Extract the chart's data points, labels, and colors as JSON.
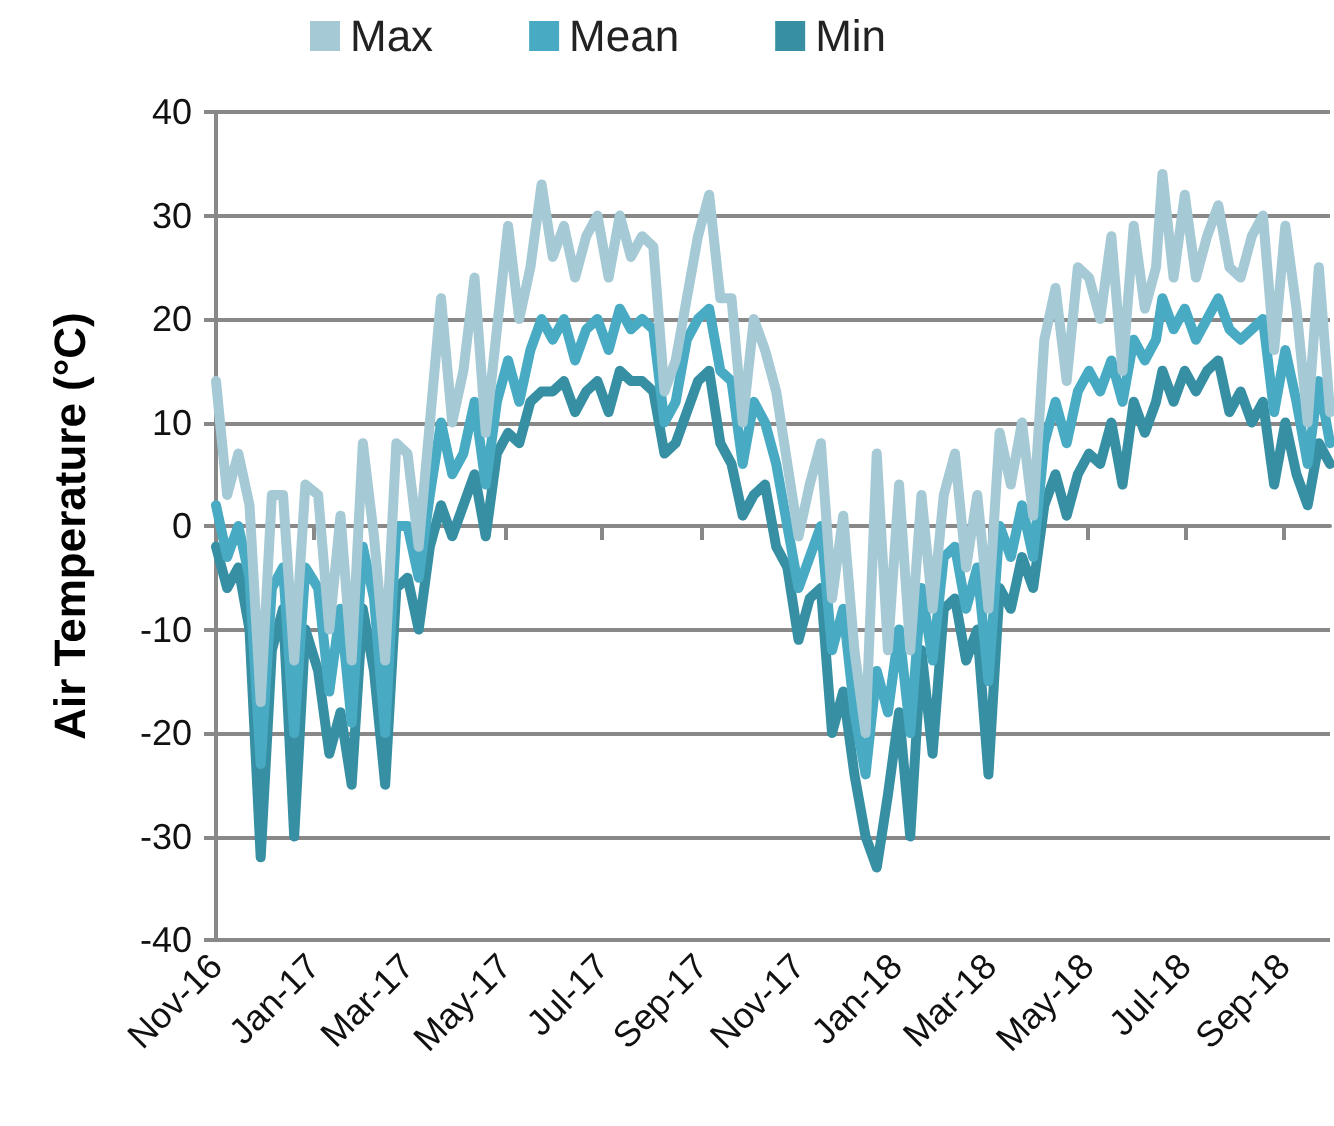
{
  "chart_data": {
    "type": "line",
    "ylabel": "Air Temperature (°C)",
    "legend": "top",
    "grid": "y",
    "marker": "none",
    "line_style": "solid",
    "ylim": [
      -40,
      40
    ],
    "yticks": [
      -40,
      -30,
      -20,
      -10,
      0,
      10,
      20,
      30,
      40
    ],
    "xlim": [
      "2016-11-01",
      "2018-09-30"
    ],
    "xticks": [
      {
        "value": "2016-11-01",
        "label": "Nov-16"
      },
      {
        "value": "2017-01-01",
        "label": "Jan-17"
      },
      {
        "value": "2017-03-01",
        "label": "Mar-17"
      },
      {
        "value": "2017-05-01",
        "label": "May-17"
      },
      {
        "value": "2017-07-01",
        "label": "Jul-17"
      },
      {
        "value": "2017-09-01",
        "label": "Sep-17"
      },
      {
        "value": "2017-11-01",
        "label": "Nov-17"
      },
      {
        "value": "2018-01-01",
        "label": "Jan-18"
      },
      {
        "value": "2018-03-01",
        "label": "Mar-18"
      },
      {
        "value": "2018-05-01",
        "label": "May-18"
      },
      {
        "value": "2018-07-01",
        "label": "Jul-18"
      },
      {
        "value": "2018-09-01",
        "label": "Sep-18"
      }
    ],
    "x": [
      "2016-11-01",
      "2016-11-08",
      "2016-11-15",
      "2016-11-22",
      "2016-11-29",
      "2016-12-06",
      "2016-12-13",
      "2016-12-20",
      "2016-12-27",
      "2017-01-04",
      "2017-01-11",
      "2017-01-18",
      "2017-01-25",
      "2017-02-01",
      "2017-02-08",
      "2017-02-15",
      "2017-02-22",
      "2017-03-01",
      "2017-03-08",
      "2017-03-15",
      "2017-03-22",
      "2017-03-29",
      "2017-04-05",
      "2017-04-12",
      "2017-04-19",
      "2017-04-26",
      "2017-05-03",
      "2017-05-10",
      "2017-05-17",
      "2017-05-24",
      "2017-05-31",
      "2017-06-07",
      "2017-06-14",
      "2017-06-21",
      "2017-06-28",
      "2017-07-05",
      "2017-07-12",
      "2017-07-19",
      "2017-07-26",
      "2017-08-02",
      "2017-08-09",
      "2017-08-16",
      "2017-08-23",
      "2017-08-30",
      "2017-09-06",
      "2017-09-13",
      "2017-09-20",
      "2017-09-27",
      "2017-10-04",
      "2017-10-11",
      "2017-10-18",
      "2017-10-25",
      "2017-11-01",
      "2017-11-08",
      "2017-11-15",
      "2017-11-22",
      "2017-11-29",
      "2017-12-06",
      "2017-12-13",
      "2017-12-20",
      "2017-12-27",
      "2018-01-03",
      "2018-01-10",
      "2018-01-17",
      "2018-01-24",
      "2018-01-31",
      "2018-02-07",
      "2018-02-14",
      "2018-02-21",
      "2018-02-28",
      "2018-03-07",
      "2018-03-14",
      "2018-03-21",
      "2018-03-28",
      "2018-04-04",
      "2018-04-11",
      "2018-04-18",
      "2018-04-25",
      "2018-05-02",
      "2018-05-09",
      "2018-05-16",
      "2018-05-23",
      "2018-05-30",
      "2018-06-06",
      "2018-06-13",
      "2018-06-17",
      "2018-06-24",
      "2018-07-01",
      "2018-07-08",
      "2018-07-15",
      "2018-07-22",
      "2018-07-29",
      "2018-08-05",
      "2018-08-12",
      "2018-08-19",
      "2018-08-26",
      "2018-09-02",
      "2018-09-09",
      "2018-09-16",
      "2018-09-23",
      "2018-09-30"
    ],
    "series": [
      {
        "name": "Max",
        "color": "#a5cad6",
        "values": [
          14,
          3,
          7,
          2,
          -17,
          3,
          3,
          -13,
          4,
          3,
          -10,
          1,
          -13,
          8,
          -1,
          -13,
          8,
          7,
          -2,
          10,
          22,
          10,
          15,
          24,
          9,
          19,
          29,
          20,
          25,
          33,
          26,
          29,
          24,
          28,
          30,
          24,
          30,
          26,
          28,
          27,
          13,
          16,
          22,
          28,
          32,
          22,
          22,
          10,
          20,
          17,
          13,
          6,
          -1,
          4,
          8,
          -7,
          1,
          -12,
          -20,
          7,
          -12,
          4,
          -12,
          3,
          -8,
          3,
          7,
          -4,
          3,
          -8,
          9,
          4,
          10,
          1,
          18,
          23,
          14,
          25,
          24,
          20,
          28,
          15,
          29,
          21,
          25,
          34,
          24,
          32,
          24,
          28,
          31,
          25,
          24,
          28,
          30,
          17,
          29,
          21,
          10,
          25,
          11
        ]
      },
      {
        "name": "Mean",
        "color": "#48abc3",
        "values": [
          2,
          -3,
          0,
          -5,
          -23,
          -6,
          -4,
          -20,
          -4,
          -6,
          -16,
          -8,
          -19,
          -2,
          -7,
          -20,
          0,
          0,
          -5,
          3,
          10,
          5,
          7,
          12,
          4,
          12,
          16,
          12,
          17,
          20,
          18,
          20,
          16,
          19,
          20,
          17,
          21,
          19,
          20,
          19,
          10,
          12,
          18,
          20,
          21,
          15,
          14,
          6,
          12,
          10,
          6,
          0,
          -6,
          -3,
          0,
          -12,
          -8,
          -18,
          -24,
          -14,
          -18,
          -10,
          -20,
          -6,
          -13,
          -3,
          -2,
          -8,
          -4,
          -15,
          0,
          -3,
          2,
          -3,
          8,
          12,
          8,
          13,
          15,
          13,
          16,
          12,
          18,
          16,
          18,
          22,
          19,
          21,
          18,
          20,
          22,
          19,
          18,
          19,
          20,
          11,
          17,
          12,
          6,
          14,
          8
        ]
      },
      {
        "name": "Min",
        "color": "#378fa3",
        "values": [
          -2,
          -6,
          -4,
          -10,
          -32,
          -12,
          -8,
          -30,
          -10,
          -14,
          -22,
          -18,
          -25,
          -8,
          -14,
          -25,
          -6,
          -5,
          -10,
          -2,
          2,
          -1,
          2,
          5,
          -1,
          7,
          9,
          8,
          12,
          13,
          13,
          14,
          11,
          13,
          14,
          11,
          15,
          14,
          14,
          13,
          7,
          8,
          11,
          14,
          15,
          8,
          6,
          1,
          3,
          4,
          -2,
          -4,
          -11,
          -7,
          -6,
          -20,
          -16,
          -24,
          -30,
          -33,
          -26,
          -18,
          -30,
          -12,
          -22,
          -8,
          -7,
          -13,
          -10,
          -24,
          -6,
          -8,
          -3,
          -6,
          2,
          5,
          1,
          5,
          7,
          6,
          10,
          4,
          12,
          9,
          12,
          15,
          12,
          15,
          13,
          15,
          16,
          11,
          13,
          10,
          12,
          4,
          10,
          5,
          2,
          8,
          6
        ]
      }
    ]
  }
}
